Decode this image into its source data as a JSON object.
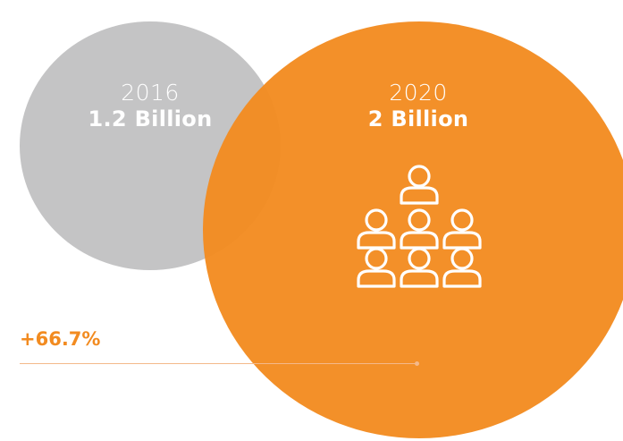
{
  "colors": {
    "gray": "#c4c4c5",
    "orange": "#f28b20",
    "text_on_bubble": "#ffffff",
    "line": "#f4b98a"
  },
  "chart_data": {
    "type": "bubble",
    "title": "",
    "categories": [
      "2016",
      "2020"
    ],
    "values": [
      1.2,
      2
    ],
    "unit": "Billion",
    "points": [
      {
        "year": "2016",
        "value": 1.2,
        "label": "1.2 Billion",
        "color": "#c4c4c5"
      },
      {
        "year": "2020",
        "value": 2,
        "label": "2 Billion",
        "color": "#f28b20",
        "icon": "group-people-icon"
      }
    ],
    "annotation": "+66.7%"
  }
}
